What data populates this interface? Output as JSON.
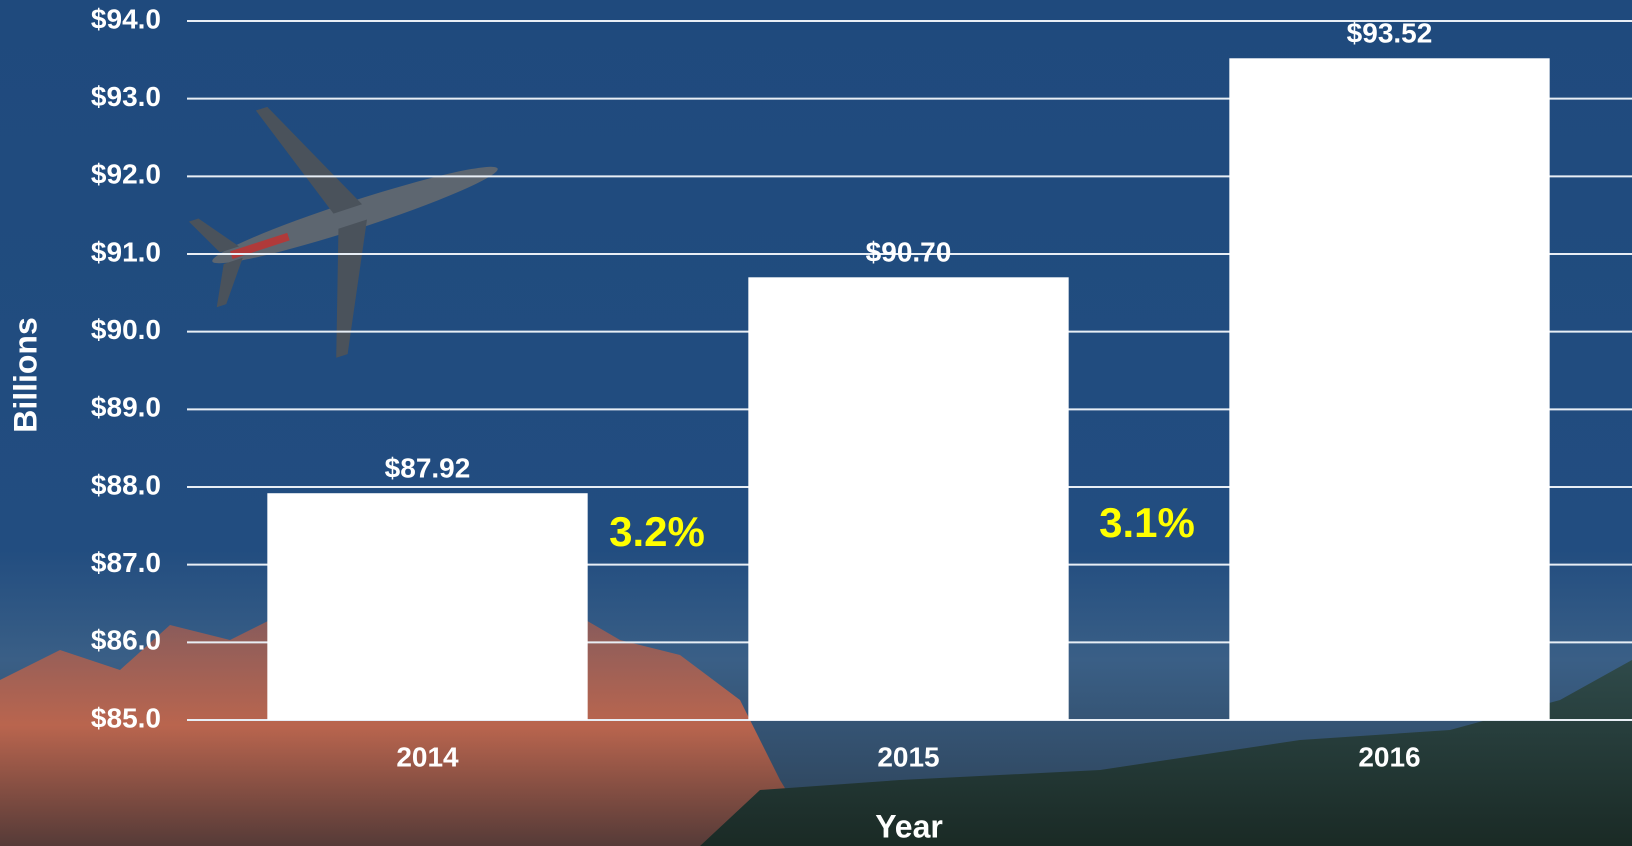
{
  "chart_data": {
    "type": "bar",
    "categories": [
      "2014",
      "2015",
      "2016"
    ],
    "values": [
      87.92,
      90.7,
      93.52
    ],
    "value_labels": [
      "$87.92",
      "$90.70",
      "$93.52"
    ],
    "color": "#ffffff",
    "ylim": [
      85,
      94
    ],
    "yticks": [
      {
        "value": 85,
        "label": "$85.0"
      },
      {
        "value": 86,
        "label": "$86.0"
      },
      {
        "value": 87,
        "label": "$87.0"
      },
      {
        "value": 88,
        "label": "$88.0"
      },
      {
        "value": 89,
        "label": "$89.0"
      },
      {
        "value": 90,
        "label": "$90.0"
      },
      {
        "value": 91,
        "label": "$91.0"
      },
      {
        "value": 92,
        "label": "$92.0"
      },
      {
        "value": 93,
        "label": "$93.0"
      },
      {
        "value": 94,
        "label": "$94.0"
      }
    ],
    "grid": true,
    "y_label": "Billions",
    "x_label": "Year",
    "annotations": [
      "3.2%",
      "3.1%"
    ]
  }
}
